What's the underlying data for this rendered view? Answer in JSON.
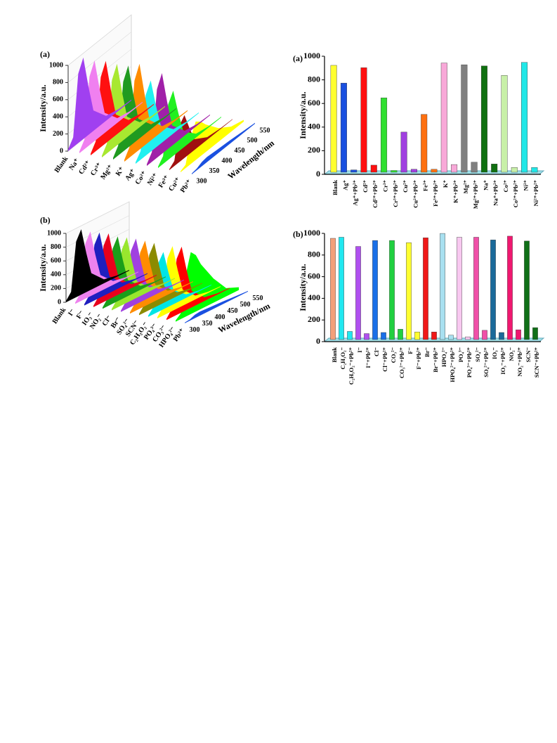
{
  "chart_data": [
    {
      "type": "waterfall",
      "title": "(a)",
      "ylabel": "Intensity/a.u.",
      "xlabel": "Wavelength/nm",
      "x": [
        300,
        320,
        340,
        360,
        380,
        400,
        450,
        500,
        550
      ],
      "xlim": [
        300,
        550
      ],
      "xticks": [
        300,
        350,
        400,
        450,
        500,
        550
      ],
      "ylim": [
        0,
        1000
      ],
      "yticks": [
        0,
        200,
        400,
        600,
        800,
        1000
      ],
      "series": [
        {
          "name": "Blank",
          "color": "#a040f0",
          "values": [
            19,
            114,
            808,
            950,
            570,
            238,
            57,
            19,
            10
          ]
        },
        {
          "name": "Na⁺",
          "color": "#f080f0",
          "values": [
            19,
            113,
            799,
            940,
            564,
            235,
            56,
            19,
            9
          ]
        },
        {
          "name": "Cd²⁺",
          "color": "#ff1010",
          "values": [
            19,
            115,
            816,
            960,
            576,
            240,
            58,
            19,
            10
          ]
        },
        {
          "name": "Cr³⁺",
          "color": "#a8e830",
          "values": [
            19,
            114,
            808,
            950,
            570,
            238,
            57,
            19,
            10
          ]
        },
        {
          "name": "Mg²⁺",
          "color": "#209a20",
          "values": [
            19,
            115,
            812,
            955,
            573,
            239,
            57,
            19,
            10
          ]
        },
        {
          "name": "K⁺",
          "color": "#ff8c00",
          "values": [
            20,
            120,
            850,
            1000,
            600,
            250,
            60,
            20,
            10
          ]
        },
        {
          "name": "Ag⁺",
          "color": "#20f0f0",
          "values": [
            17,
            100,
            706,
            830,
            498,
            208,
            50,
            17,
            8
          ]
        },
        {
          "name": "Co²⁺",
          "color": "#a020a8",
          "values": [
            19,
            113,
            799,
            940,
            564,
            235,
            56,
            19,
            9
          ]
        },
        {
          "name": "Ni²⁺",
          "color": "#20f020",
          "values": [
            15,
            91,
            646,
            760,
            456,
            190,
            46,
            15,
            8
          ]
        },
        {
          "name": "Fe³⁺",
          "color": "#a01010",
          "values": [
            10,
            60,
            425,
            500,
            300,
            125,
            30,
            10,
            5
          ]
        },
        {
          "name": "Cu²⁺",
          "color": "#ffff00",
          "values": [
            10,
            40,
            300,
            450,
            400,
            320,
            160,
            60,
            20
          ]
        },
        {
          "name": "Pb²⁺",
          "color": "#1a50e0",
          "values": [
            10,
            20,
            50,
            60,
            55,
            50,
            40,
            25,
            10
          ]
        }
      ]
    },
    {
      "type": "bar",
      "title": "(a)",
      "ylabel": "Intensity/a.u.",
      "ylim": [
        0,
        1000
      ],
      "yticks": [
        0,
        200,
        400,
        600,
        800,
        1000
      ],
      "categories": [
        "Blank",
        "Ag⁺",
        "Ag⁺+Pb²⁺",
        "Cd²⁺",
        "Cd²⁺+Pb²⁺",
        "Cr³⁺",
        "Cr³⁺+Pb²⁺",
        "Cu²⁺",
        "Cu²⁺+Pb²⁺",
        "Fe³⁺",
        "Fe³⁺+Pb²⁺",
        "K⁺",
        "K⁺+Pb²⁺",
        "Mg²⁺",
        "Mg²⁺+Pb²⁺",
        "Na⁺",
        "Na⁺+Pb²⁺",
        "Co²⁺",
        "Co²⁺+Pb²⁺",
        "Ni²⁺",
        "Ni²⁺+Pb²⁺"
      ],
      "values": [
        905,
        755,
        20,
        885,
        60,
        630,
        15,
        340,
        25,
        490,
        25,
        925,
        65,
        910,
        85,
        900,
        70,
        820,
        40,
        930,
        40
      ],
      "colors": [
        "#ffff30",
        "#1a50e0",
        "#1a50e0",
        "#ff1010",
        "#ff1010",
        "#30e030",
        "#30e030",
        "#a040e0",
        "#a040e0",
        "#ff7010",
        "#ff7010",
        "#f8a8d8",
        "#f8a8d8",
        "#808080",
        "#808080",
        "#107010",
        "#107010",
        "#c8f0a8",
        "#c8f0a8",
        "#20e8e8",
        "#20e8e8"
      ]
    },
    {
      "type": "waterfall",
      "title": "(b)",
      "ylabel": "Intensity/a.u.",
      "xlabel": "Wavelength/nm",
      "x": [
        300,
        320,
        340,
        360,
        380,
        400,
        450,
        500,
        550
      ],
      "xlim": [
        300,
        550
      ],
      "xticks": [
        300,
        350,
        400,
        450,
        500,
        550
      ],
      "ylim": [
        0,
        1000
      ],
      "yticks": [
        0,
        200,
        400,
        600,
        800,
        1000
      ],
      "series": [
        {
          "name": "Blank",
          "color": "#000000",
          "values": [
            19,
            114,
            808,
            950,
            570,
            238,
            57,
            19,
            10
          ]
        },
        {
          "name": "I⁻",
          "color": "#ee82ee",
          "values": [
            19,
            113,
            799,
            940,
            564,
            235,
            56,
            19,
            9
          ]
        },
        {
          "name": "F⁻",
          "color": "#1f1fbf",
          "values": [
            19,
            114,
            808,
            950,
            570,
            238,
            57,
            19,
            10
          ]
        },
        {
          "name": "IO₃⁻",
          "color": "#e8001c",
          "values": [
            19,
            115,
            816,
            960,
            576,
            240,
            58,
            19,
            10
          ]
        },
        {
          "name": "NO₂⁻",
          "color": "#1a9e1a",
          "values": [
            19,
            113,
            799,
            940,
            564,
            235,
            56,
            19,
            9
          ]
        },
        {
          "name": "Cl⁻",
          "color": "#99e62e",
          "values": [
            19,
            114,
            808,
            950,
            570,
            238,
            57,
            19,
            10
          ]
        },
        {
          "name": "Br⁻",
          "color": "#a040e0",
          "values": [
            19,
            115,
            812,
            955,
            573,
            239,
            57,
            19,
            10
          ]
        },
        {
          "name": "SO₄²⁻",
          "color": "#ff8c00",
          "values": [
            19,
            114,
            808,
            950,
            570,
            238,
            57,
            19,
            10
          ]
        },
        {
          "name": "SCN⁻",
          "color": "#8b8b00",
          "values": [
            19,
            113,
            799,
            940,
            564,
            235,
            56,
            19,
            9
          ]
        },
        {
          "name": "C₂H₃O₂⁻",
          "color": "#00e5e5",
          "values": [
            17,
            100,
            706,
            830,
            498,
            208,
            50,
            17,
            8
          ]
        },
        {
          "name": "PO₄³⁻",
          "color": "#ffff00",
          "values": [
            19,
            113,
            799,
            940,
            564,
            235,
            56,
            19,
            9
          ]
        },
        {
          "name": "CO₃²⁻",
          "color": "#ff0000",
          "values": [
            19,
            115,
            812,
            955,
            573,
            239,
            57,
            19,
            10
          ]
        },
        {
          "name": "HPO₄²⁻",
          "color": "#00ff00",
          "values": [
            18,
            80,
            600,
            900,
            820,
            650,
            350,
            120,
            40
          ]
        },
        {
          "name": "Pb²⁺",
          "color": "#1a50e0",
          "values": [
            10,
            20,
            50,
            60,
            55,
            50,
            40,
            25,
            10
          ]
        }
      ]
    },
    {
      "type": "bar",
      "title": "(b)",
      "ylabel": "Intensity/a.u.",
      "ylim": [
        0,
        1000
      ],
      "yticks": [
        0,
        200,
        400,
        600,
        800,
        1000
      ],
      "categories": [
        "Blank",
        "C₂H₃O₂⁻",
        "C₂H₃O₂⁻+Pb²⁺",
        "I⁻",
        "I⁻+Pb²⁺",
        "Cl⁻",
        "Cl⁻+Pb²⁺",
        "CO₃²⁻",
        "CO₃²⁻+Pb²⁺",
        "F⁻",
        "F⁻+Pb²⁺",
        "Br⁻",
        "Br⁻+Pb²⁺",
        "HPO₄²⁻",
        "HPO₄²⁻+Pb²⁺",
        "PO₄³⁻",
        "PO₄³⁻+Pb²⁺",
        "SO₄²⁻",
        "SO₄²⁻+Pb²⁺",
        "IO₃⁻",
        "IO₃⁻+Pb²⁺",
        "NO₂⁻",
        "NO₂⁻+Pb²⁺",
        "SCN⁻",
        "SCN⁻+Pb²⁺"
      ],
      "values": [
        935,
        945,
        75,
        860,
        55,
        915,
        65,
        915,
        95,
        895,
        70,
        940,
        70,
        980,
        40,
        945,
        25,
        945,
        85,
        920,
        65,
        955,
        90,
        910,
        110
      ],
      "colors": [
        "#f4a07a",
        "#20e8f0",
        "#20e8f0",
        "#b050f0",
        "#b050f0",
        "#1a70e8",
        "#1a70e8",
        "#20d040",
        "#20d040",
        "#ffff30",
        "#ffff30",
        "#f01818",
        "#f01818",
        "#a8e0f0",
        "#a8e0f0",
        "#f8c8f0",
        "#f8c8f0",
        "#f050a8",
        "#f050a8",
        "#1a6a9a",
        "#1a6a9a",
        "#f01870",
        "#f01870",
        "#107018",
        "#107018"
      ]
    }
  ]
}
